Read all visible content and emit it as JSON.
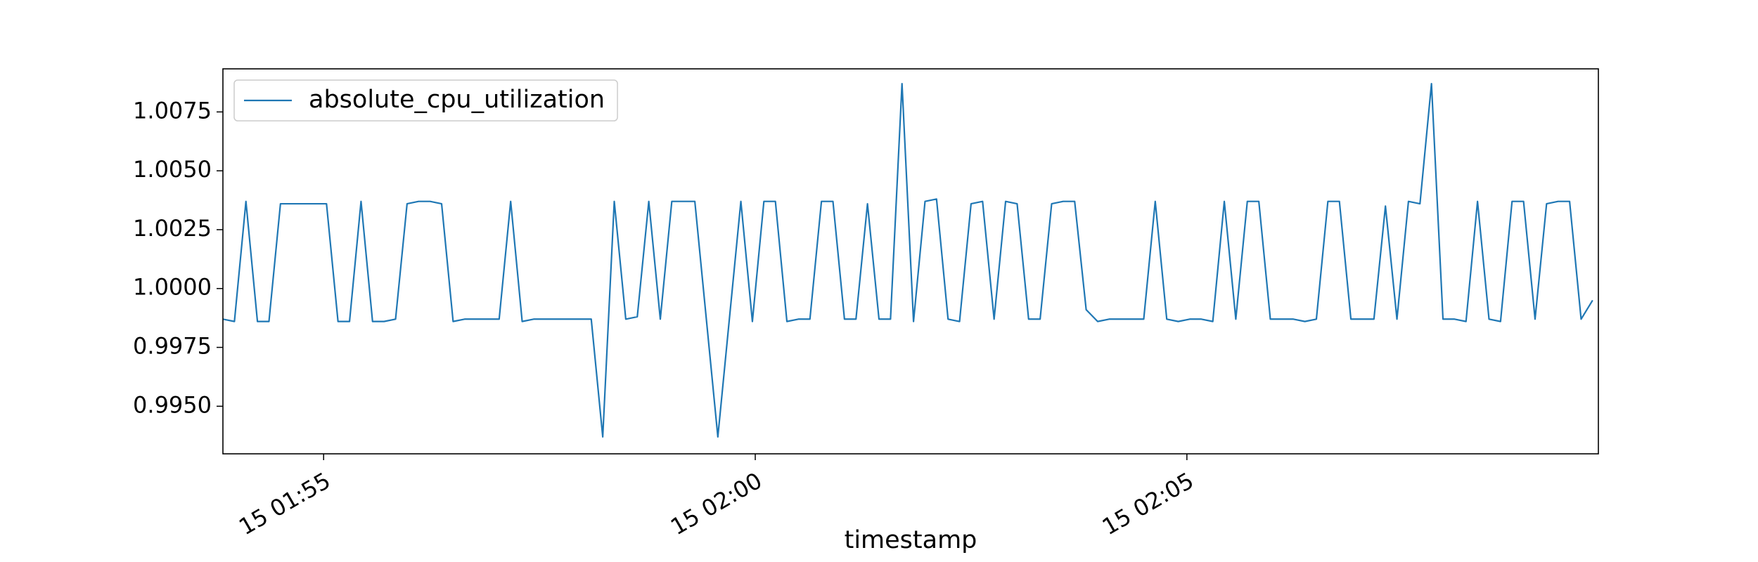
{
  "chart_data": {
    "type": "line",
    "xlabel": "timestamp",
    "legend": "upper left",
    "grid": false,
    "x": [
      "15 01:53:50",
      "15 01:53:58",
      "15 01:54:06",
      "15 01:54:14",
      "15 01:54:22",
      "15 01:54:30",
      "15 01:54:38",
      "15 01:54:46",
      "15 01:54:54",
      "15 01:55:02",
      "15 01:55:10",
      "15 01:55:18",
      "15 01:55:26",
      "15 01:55:34",
      "15 01:55:42",
      "15 01:55:50",
      "15 01:55:58",
      "15 01:56:06",
      "15 01:56:14",
      "15 01:56:22",
      "15 01:56:30",
      "15 01:56:38",
      "15 01:56:46",
      "15 01:56:54",
      "15 01:57:02",
      "15 01:57:10",
      "15 01:57:18",
      "15 01:57:26",
      "15 01:57:34",
      "15 01:57:42",
      "15 01:57:50",
      "15 01:57:58",
      "15 01:58:06",
      "15 01:58:14",
      "15 01:58:22",
      "15 01:58:30",
      "15 01:58:38",
      "15 01:58:46",
      "15 01:58:54",
      "15 01:59:02",
      "15 01:59:10",
      "15 01:59:18",
      "15 01:59:26",
      "15 01:59:34",
      "15 01:59:42",
      "15 01:59:50",
      "15 01:59:58",
      "15 02:00:06",
      "15 02:00:14",
      "15 02:00:22",
      "15 02:00:30",
      "15 02:00:38",
      "15 02:00:46",
      "15 02:00:54",
      "15 02:01:02",
      "15 02:01:10",
      "15 02:01:18",
      "15 02:01:26",
      "15 02:01:34",
      "15 02:01:42",
      "15 02:01:50",
      "15 02:01:58",
      "15 02:02:06",
      "15 02:02:14",
      "15 02:02:22",
      "15 02:02:30",
      "15 02:02:38",
      "15 02:02:46",
      "15 02:02:54",
      "15 02:03:02",
      "15 02:03:10",
      "15 02:03:18",
      "15 02:03:26",
      "15 02:03:34",
      "15 02:03:42",
      "15 02:03:50",
      "15 02:03:58",
      "15 02:04:06",
      "15 02:04:14",
      "15 02:04:22",
      "15 02:04:30",
      "15 02:04:38",
      "15 02:04:46",
      "15 02:04:54",
      "15 02:05:02",
      "15 02:05:10",
      "15 02:05:18",
      "15 02:05:26",
      "15 02:05:34",
      "15 02:05:42",
      "15 02:05:50",
      "15 02:05:58",
      "15 02:06:06",
      "15 02:06:14",
      "15 02:06:22",
      "15 02:06:30",
      "15 02:06:38",
      "15 02:06:46",
      "15 02:06:54",
      "15 02:07:02",
      "15 02:07:10",
      "15 02:07:18",
      "15 02:07:26",
      "15 02:07:34",
      "15 02:07:42",
      "15 02:07:50",
      "15 02:07:58",
      "15 02:08:06",
      "15 02:08:14",
      "15 02:08:22",
      "15 02:08:30",
      "15 02:08:38",
      "15 02:08:46",
      "15 02:08:54",
      "15 02:09:02",
      "15 02:09:10",
      "15 02:09:18",
      "15 02:09:26",
      "15 02:09:34",
      "15 02:09:42"
    ],
    "series": [
      {
        "name": "absolute_cpu_utilization",
        "color": "#1f77b4",
        "values": [
          0.9987,
          0.9986,
          1.0037,
          0.9986,
          0.9986,
          1.0036,
          1.0036,
          1.0036,
          1.0036,
          1.0036,
          0.9986,
          0.9986,
          1.0037,
          0.9986,
          0.9986,
          0.9987,
          1.0036,
          1.0037,
          1.0037,
          1.0036,
          0.9986,
          0.9987,
          0.9987,
          0.9987,
          0.9987,
          1.0037,
          0.9986,
          0.9987,
          0.9987,
          0.9987,
          0.9987,
          0.9987,
          0.9987,
          0.9937,
          1.0037,
          0.9987,
          0.9988,
          1.0037,
          0.9987,
          1.0037,
          1.0037,
          1.0037,
          0.9987,
          0.9937,
          0.9987,
          1.0037,
          0.9986,
          1.0037,
          1.0037,
          0.9986,
          0.9987,
          0.9987,
          1.0037,
          1.0037,
          0.9987,
          0.9987,
          1.0036,
          0.9987,
          0.9987,
          1.0087,
          0.9986,
          1.0037,
          1.0038,
          0.9987,
          0.9986,
          1.0036,
          1.0037,
          0.9987,
          1.0037,
          1.0036,
          0.9987,
          0.9987,
          1.0036,
          1.0037,
          1.0037,
          0.9991,
          0.9986,
          0.9987,
          0.9987,
          0.9987,
          0.9987,
          1.0037,
          0.9987,
          0.9986,
          0.9987,
          0.9987,
          0.9986,
          1.0037,
          0.9987,
          1.0037,
          1.0037,
          0.9987,
          0.9987,
          0.9987,
          0.9986,
          0.9987,
          1.0037,
          1.0037,
          0.9987,
          0.9987,
          0.9987,
          1.0035,
          0.9987,
          1.0037,
          1.0036,
          1.0087,
          0.9987,
          0.9987,
          0.9986,
          1.0037,
          0.9987,
          0.9986,
          1.0037,
          1.0037,
          0.9987,
          1.0036,
          1.0037,
          1.0037,
          0.9987,
          0.9995
        ]
      }
    ],
    "xlim": [
      "15 01:53:50",
      "15 02:09:46"
    ],
    "xticks": [
      "15 01:55",
      "15 02:00",
      "15 02:05"
    ],
    "ylim": [
      0.99298,
      1.00933
    ],
    "yticks": [
      {
        "value": 0.995,
        "label": "0.9950"
      },
      0.9975,
      {
        "value": 1,
        "label": "1.0000"
      },
      1.0025,
      {
        "value": 1.005,
        "label": "1.0050"
      },
      1.0075
    ]
  }
}
